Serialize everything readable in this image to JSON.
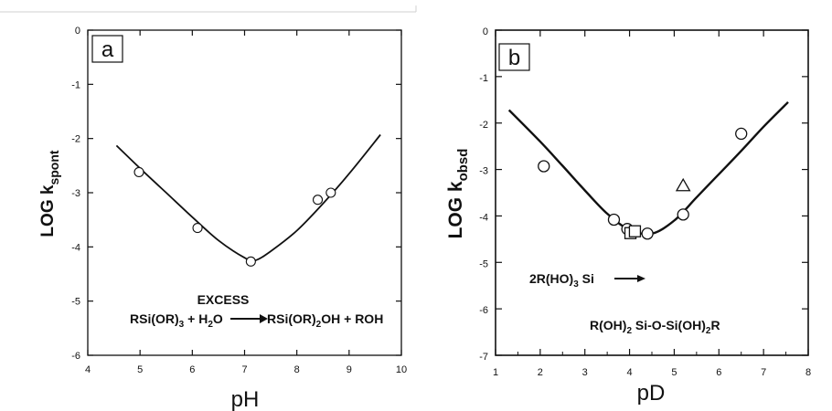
{
  "chart_data": [
    {
      "type": "scatter",
      "panel": "a",
      "xlabel": "pH",
      "ylabel_main": "LOG k",
      "ylabel_sub": "spont",
      "xlim": [
        4,
        10
      ],
      "ylim": [
        -6,
        0
      ],
      "xticks": [
        "4",
        "5",
        "6",
        "7",
        "8",
        "9",
        "10"
      ],
      "yticks": [
        "0",
        "-1",
        "-2",
        "-3",
        "-4",
        "-5",
        "-6"
      ],
      "grid": false,
      "fit_curve": {
        "x": [
          4.55,
          5.0,
          5.5,
          6.0,
          6.5,
          7.0,
          7.2,
          7.5,
          8.0,
          8.5,
          9.0,
          9.6
        ],
        "y": [
          -2.13,
          -2.55,
          -3.0,
          -3.45,
          -3.88,
          -4.2,
          -4.25,
          -4.08,
          -3.7,
          -3.2,
          -2.65,
          -1.93
        ]
      },
      "series": [
        {
          "marker": "circle",
          "x": [
            4.98,
            6.1,
            7.12,
            8.4,
            8.65
          ],
          "y": [
            -2.62,
            -3.65,
            -4.27,
            -3.13,
            -3.0
          ]
        }
      ],
      "annotation": {
        "line1": "EXCESS",
        "eq_part1": "RSi(OR)",
        "eq_sub1": "3",
        "eq_part2": " + H",
        "eq_sub2": "2",
        "eq_part3": "O",
        "eq_part4": "RSi(OR)",
        "eq_sub3": "2",
        "eq_part5": "OH + ROH"
      }
    },
    {
      "type": "scatter",
      "panel": "b",
      "xlabel": "pD",
      "ylabel_main": "LOG k",
      "ylabel_sub": "obsd",
      "xlim": [
        1,
        8
      ],
      "ylim": [
        -7,
        0
      ],
      "xticks": [
        "1",
        "2",
        "3",
        "4",
        "5",
        "6",
        "7",
        "8"
      ],
      "yticks": [
        "0",
        "-1",
        "-2",
        "-3",
        "-4",
        "-5",
        "-6",
        "-7"
      ],
      "grid": false,
      "fit_curve": {
        "x": [
          1.3,
          2.0,
          2.5,
          3.0,
          3.5,
          4.0,
          4.5,
          5.0,
          5.5,
          6.0,
          6.5,
          7.0,
          7.55
        ],
        "y": [
          -1.72,
          -2.4,
          -2.92,
          -3.45,
          -3.95,
          -4.3,
          -4.38,
          -4.1,
          -3.6,
          -3.1,
          -2.6,
          -2.08,
          -1.55
        ]
      },
      "series": [
        {
          "marker": "circle",
          "x": [
            2.08,
            3.65,
            3.95,
            4.4,
            5.2,
            6.5
          ],
          "y": [
            -2.93,
            -4.08,
            -4.28,
            -4.38,
            -3.97,
            -2.23
          ]
        },
        {
          "marker": "square",
          "x": [
            4.02,
            4.12
          ],
          "y": [
            -4.37,
            -4.33
          ]
        },
        {
          "marker": "triangle",
          "x": [
            5.2
          ],
          "y": [
            -3.35
          ]
        }
      ],
      "annotation": {
        "line1_part1": "2R(HO)",
        "line1_sub": "3",
        "line1_part2": " Si",
        "line2_part1": "R(OH)",
        "line2_sub1": "2",
        "line2_part2": " Si-O-Si(OH)",
        "line2_sub2": "2",
        "line2_part3": "R"
      }
    }
  ]
}
